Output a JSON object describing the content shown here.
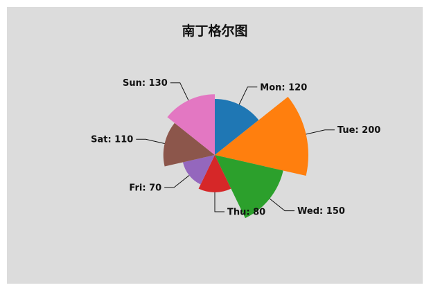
{
  "chart_data": {
    "type": "pie",
    "variant": "nightingale-rose",
    "title": "南丁格尔图",
    "categories": [
      "Mon",
      "Tue",
      "Wed",
      "Thu",
      "Fri",
      "Sat",
      "Sun"
    ],
    "values": [
      120,
      200,
      150,
      80,
      70,
      110,
      130
    ],
    "colors": [
      "#1f77b4",
      "#ff7f0e",
      "#2ca02c",
      "#d62728",
      "#9467bd",
      "#8c564b",
      "#e377c2"
    ],
    "labels": [
      "Mon: 120",
      "Tue: 200",
      "Wed: 150",
      "Thu: 80",
      "Fri: 70",
      "Sat: 110",
      "Sun: 130"
    ],
    "legend": "none",
    "grid": false
  }
}
